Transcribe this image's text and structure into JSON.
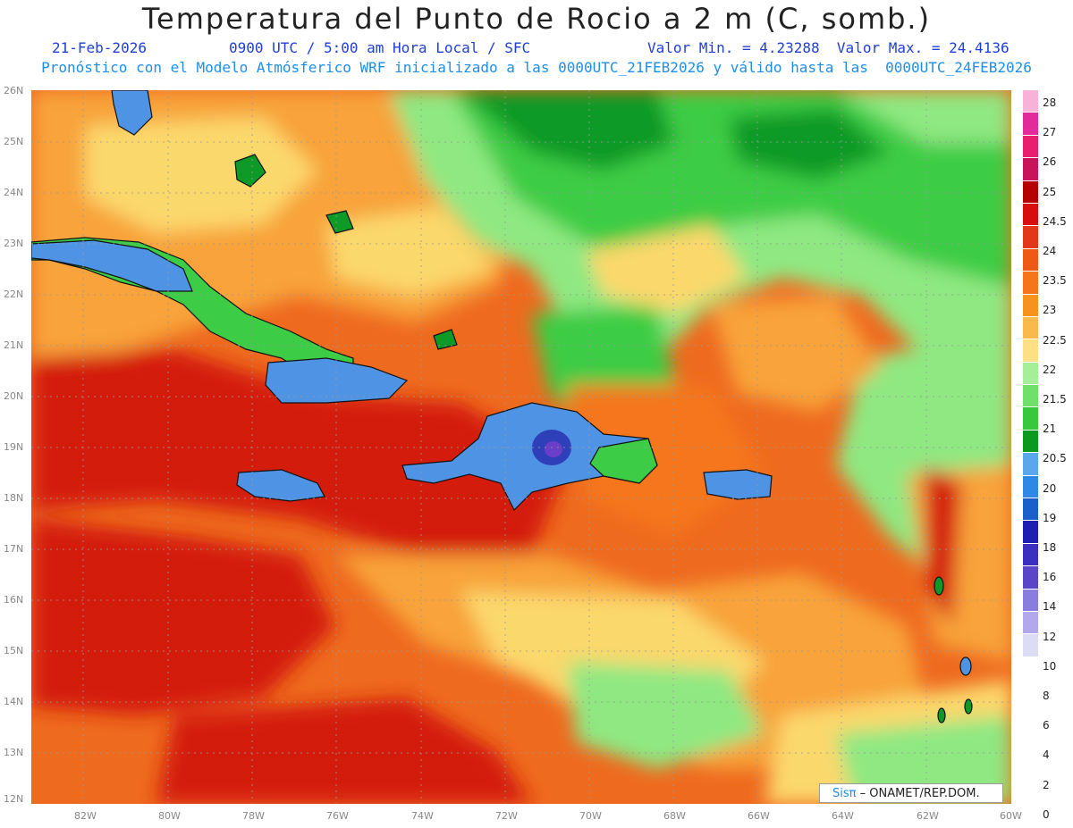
{
  "title": "Temperatura del Punto de Rocio a 2 m (C, somb.)",
  "subtitle_date": "21-Feb-2026",
  "subtitle_time": "0900 UTC / 5:00 am Hora Local / SFC",
  "subtitle_minmax": "Valor Min. = 4.23288  Valor Max. = 24.4136",
  "subtitle_run": "Pronóstico con el Modelo Atmósferico WRF inicializado a las 0000UTC_21FEB2026 y válido hasta las  0000UTC_24FEB2026",
  "lat_labels": [
    "26N",
    "25N",
    "24N",
    "23N",
    "22N",
    "21N",
    "20N",
    "19N",
    "18N",
    "17N",
    "16N",
    "15N",
    "14N",
    "13N",
    "12N"
  ],
  "lon_labels": [
    "82W",
    "80W",
    "78W",
    "76W",
    "74W",
    "72W",
    "70W",
    "68W",
    "66W",
    "64W",
    "62W",
    "60W"
  ],
  "colorbar": {
    "labels": [
      "28",
      "27",
      "26",
      "25",
      "24.5",
      "24",
      "23.5",
      "23",
      "22.5",
      "22",
      "21.5",
      "21",
      "20.5",
      "20",
      "19",
      "18",
      "16",
      "14",
      "12",
      "10",
      "8",
      "6",
      "4",
      "2",
      "0"
    ],
    "colors": [
      "#f7b3d7",
      "#e22a9b",
      "#e81e6e",
      "#c8125a",
      "#b40000",
      "#d80d0d",
      "#e33719",
      "#ee5a16",
      "#f5761a",
      "#f7921c",
      "#fab94c",
      "#fce083",
      "#a6ef98",
      "#6fe06a",
      "#37c83c",
      "#0a9a1e",
      "#5aa7ee",
      "#2f87e6",
      "#1a5fcc",
      "#1c1fb0",
      "#3a2fbf",
      "#5a44c8",
      "#8b7ce0",
      "#b3a7ee",
      "#dcdcf5"
    ]
  },
  "credit": {
    "sis": "Sisπ",
    "rest": " – ONAMET/REP.DOM."
  },
  "colors": {
    "ocean_warm": "#ee6a1e",
    "ocean_hot": "#d41b10",
    "ocean_mid": "#f8a33a",
    "ocean_light": "#fbd86c",
    "green_light": "#8fe882",
    "green": "#3dcc45",
    "green_dark": "#0e9a26",
    "blue": "#4f93e4",
    "blue_dark": "#2f3fb9"
  }
}
